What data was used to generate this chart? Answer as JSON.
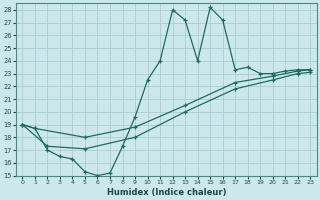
{
  "xlabel": "Humidex (Indice chaleur)",
  "xlim": [
    -0.5,
    23.5
  ],
  "ylim": [
    15,
    28.5
  ],
  "yticks": [
    15,
    16,
    17,
    18,
    19,
    20,
    21,
    22,
    23,
    24,
    25,
    26,
    27,
    28
  ],
  "xticks": [
    0,
    1,
    2,
    3,
    4,
    5,
    6,
    7,
    8,
    9,
    10,
    11,
    12,
    13,
    14,
    15,
    16,
    17,
    18,
    19,
    20,
    21,
    22,
    23
  ],
  "bg_color": "#cde8ec",
  "grid_color": "#a8cdd4",
  "line_color": "#1e6b5e",
  "line1_x": [
    0,
    1,
    2,
    3,
    4,
    5,
    6,
    7,
    8,
    9,
    10,
    11,
    12,
    13,
    14,
    15,
    16,
    17,
    18,
    19,
    20,
    21,
    22,
    23
  ],
  "line1_y": [
    19.0,
    18.7,
    17.0,
    16.5,
    16.3,
    15.3,
    15.0,
    15.2,
    17.3,
    19.6,
    22.5,
    24.0,
    28.0,
    27.2,
    24.0,
    28.2,
    27.2,
    23.3,
    23.5,
    23.0,
    23.0,
    23.2,
    23.3,
    23.3
  ],
  "line2_x": [
    0,
    1,
    5,
    9,
    13,
    17,
    20,
    22,
    23
  ],
  "line2_y": [
    19.0,
    18.7,
    18.0,
    18.8,
    20.5,
    22.3,
    22.8,
    23.2,
    23.3
  ],
  "line3_x": [
    0,
    2,
    5,
    9,
    13,
    17,
    20,
    22,
    23
  ],
  "line3_y": [
    19.0,
    17.3,
    17.1,
    18.0,
    20.0,
    21.8,
    22.5,
    23.0,
    23.1
  ]
}
